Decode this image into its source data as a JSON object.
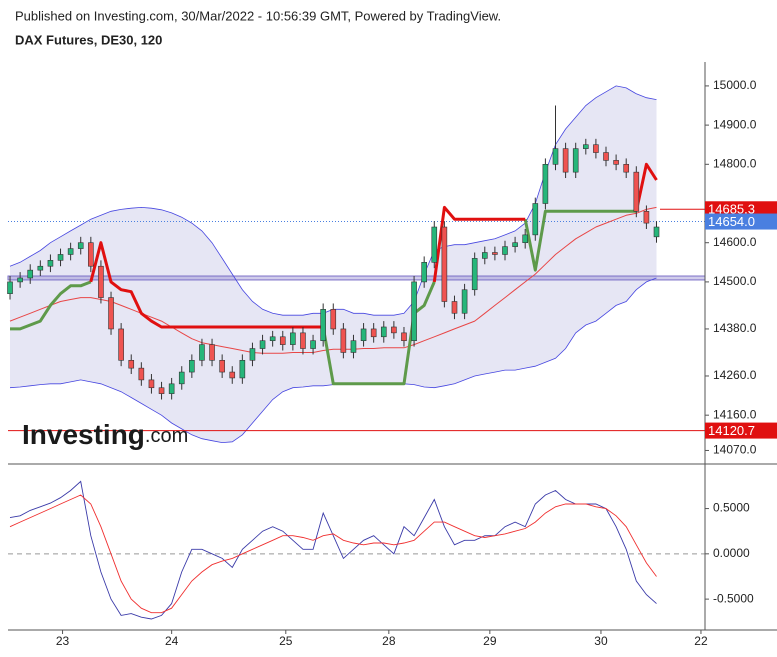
{
  "header": "Published on Investing.com, 30/Mar/2022 - 10:56:39 GMT, Powered by TradingView.",
  "watermark": [
    "Investing",
    ".com"
  ],
  "chart_data": [
    {
      "type": "candlestick",
      "title": "DAX Futures, DE30, 120",
      "open": [
        14470,
        14500,
        14510,
        14530,
        14540,
        14555,
        14570,
        14585,
        14600,
        14540,
        14460,
        14380,
        14300,
        14280,
        14250,
        14230,
        14215,
        14240,
        14270,
        14300,
        14340,
        14300,
        14270,
        14255,
        14300,
        14330,
        14350,
        14360,
        14340,
        14370,
        14330,
        14350,
        14430,
        14380,
        14320,
        14350,
        14380,
        14360,
        14385,
        14370,
        14350,
        14500,
        14550,
        14640,
        14450,
        14420,
        14480,
        14560,
        14575,
        14570,
        14590,
        14600,
        14620,
        14700,
        14800,
        14840,
        14780,
        14840,
        14850,
        14830,
        14810,
        14800,
        14780,
        14680,
        14615
      ],
      "close": [
        14500,
        14510,
        14530,
        14540,
        14555,
        14570,
        14585,
        14600,
        14540,
        14460,
        14380,
        14300,
        14280,
        14250,
        14230,
        14215,
        14240,
        14270,
        14300,
        14340,
        14300,
        14270,
        14255,
        14300,
        14330,
        14350,
        14360,
        14340,
        14370,
        14330,
        14350,
        14430,
        14380,
        14320,
        14350,
        14380,
        14360,
        14385,
        14370,
        14350,
        14500,
        14550,
        14640,
        14450,
        14420,
        14480,
        14560,
        14575,
        14570,
        14590,
        14600,
        14620,
        14700,
        14800,
        14840,
        14780,
        14840,
        14850,
        14830,
        14810,
        14800,
        14780,
        14680,
        14650,
        14640
      ],
      "high": [
        14515,
        14525,
        14545,
        14555,
        14570,
        14585,
        14600,
        14615,
        14615,
        14555,
        14475,
        14395,
        14315,
        14295,
        14265,
        14245,
        14255,
        14285,
        14315,
        14355,
        14355,
        14315,
        14285,
        14315,
        14345,
        14365,
        14375,
        14375,
        14385,
        14385,
        14365,
        14445,
        14445,
        14395,
        14365,
        14395,
        14395,
        14400,
        14400,
        14385,
        14515,
        14565,
        14655,
        14655,
        14465,
        14495,
        14575,
        14590,
        14590,
        14605,
        14615,
        14635,
        14715,
        14815,
        14950,
        14855,
        14855,
        14865,
        14865,
        14845,
        14825,
        14815,
        14795,
        14695,
        14655
      ],
      "low": [
        14455,
        14485,
        14495,
        14515,
        14525,
        14540,
        14555,
        14570,
        14525,
        14445,
        14365,
        14285,
        14265,
        14235,
        14215,
        14200,
        14200,
        14225,
        14255,
        14285,
        14285,
        14255,
        14240,
        14240,
        14285,
        14315,
        14335,
        14325,
        14325,
        14315,
        14315,
        14335,
        14365,
        14305,
        14305,
        14335,
        14345,
        14345,
        14355,
        14335,
        14335,
        14485,
        14535,
        14435,
        14405,
        14405,
        14465,
        14545,
        14555,
        14555,
        14575,
        14585,
        14605,
        14685,
        14785,
        14765,
        14765,
        14825,
        14815,
        14795,
        14785,
        14765,
        14665,
        14635,
        14600
      ],
      "up_color": "#26b67a",
      "down_color": "#ef5350",
      "band_upper": [
        14540,
        14550,
        14565,
        14580,
        14600,
        14615,
        14630,
        14645,
        14660,
        14670,
        14680,
        14685,
        14688,
        14690,
        14688,
        14684,
        14676,
        14665,
        14650,
        14630,
        14600,
        14560,
        14520,
        14480,
        14450,
        14430,
        14420,
        14415,
        14415,
        14415,
        14420,
        14420,
        14430,
        14430,
        14420,
        14420,
        14415,
        14415,
        14415,
        14420,
        14450,
        14520,
        14580,
        14590,
        14595,
        14595,
        14600,
        14605,
        14610,
        14620,
        14630,
        14650,
        14700,
        14780,
        14850,
        14890,
        14920,
        14950,
        14970,
        14985,
        15000,
        14995,
        14980,
        14970,
        14965
      ],
      "band_lower": [
        14230,
        14232,
        14235,
        14238,
        14240,
        14240,
        14245,
        14250,
        14245,
        14240,
        14230,
        14220,
        14205,
        14190,
        14175,
        14160,
        14140,
        14125,
        14110,
        14100,
        14095,
        14090,
        14092,
        14110,
        14140,
        14170,
        14200,
        14220,
        14230,
        14232,
        14235,
        14235,
        14238,
        14240,
        14240,
        14240,
        14240,
        14240,
        14240,
        14240,
        14238,
        14232,
        14230,
        14235,
        14240,
        14250,
        14260,
        14265,
        14270,
        14275,
        14275,
        14280,
        14285,
        14295,
        14305,
        14330,
        14370,
        14390,
        14400,
        14420,
        14440,
        14450,
        14480,
        14500,
        14510
      ],
      "band_color": "#4646e0",
      "band_fill": "#e6e6f4",
      "overlays": [
        {
          "color": "#e84646",
          "width": 1,
          "values": [
            14400,
            14410,
            14420,
            14430,
            14440,
            14450,
            14455,
            14460,
            14460,
            14455,
            14450,
            14440,
            14430,
            14420,
            14410,
            14400,
            14385,
            14370,
            14355,
            14345,
            14340,
            14335,
            14330,
            14325,
            14320,
            14318,
            14318,
            14318,
            14320,
            14320,
            14320,
            14325,
            14328,
            14328,
            14328,
            14330,
            14330,
            14332,
            14332,
            14332,
            14340,
            14350,
            14360,
            14370,
            14380,
            14390,
            14400,
            14420,
            14440,
            14460,
            14480,
            14500,
            14520,
            14545,
            14570,
            14590,
            14610,
            14625,
            14640,
            14650,
            14660,
            14670,
            14675,
            14685,
            14690
          ]
        },
        {
          "color": "#5e9a4a",
          "width": 3,
          "values": [
            14380,
            14380,
            14390,
            14400,
            14440,
            14470,
            14490,
            14490,
            14500,
            null,
            null,
            null,
            null,
            null,
            null,
            null,
            null,
            null,
            null,
            null,
            null,
            null,
            null,
            null,
            null,
            null,
            null,
            null,
            null,
            null,
            null,
            14385,
            14240,
            14240,
            14240,
            14240,
            14240,
            14240,
            14240,
            14240,
            14420,
            14440,
            14500,
            null,
            null,
            null,
            null,
            null,
            null,
            null,
            null,
            14660,
            14530,
            14680,
            14680,
            14680,
            14680,
            14680,
            14680,
            14680,
            14680,
            14680,
            14680,
            null,
            null
          ]
        },
        {
          "color": "#e01010",
          "width": 3,
          "values": [
            null,
            null,
            null,
            null,
            null,
            null,
            null,
            null,
            14500,
            14600,
            14500,
            14480,
            14475,
            14420,
            14400,
            14385,
            14385,
            14385,
            14385,
            14385,
            14385,
            14385,
            14385,
            14385,
            14385,
            14385,
            14385,
            14385,
            14385,
            14385,
            14385,
            14385,
            null,
            null,
            null,
            null,
            null,
            null,
            null,
            null,
            null,
            null,
            14500,
            14690,
            14660,
            14660,
            14660,
            14660,
            14660,
            14660,
            14660,
            14660,
            null,
            null,
            null,
            null,
            null,
            null,
            null,
            null,
            null,
            null,
            14680,
            14800,
            14760
          ]
        }
      ],
      "zone": [
        14505,
        14515
      ],
      "zone_color": "#7b6fc6",
      "price_lines": [
        {
          "value": 14685.3,
          "label": "14685.3",
          "color": "#e01010",
          "style": "short"
        },
        {
          "value": 14654.0,
          "label": "14654.0",
          "color": "#4a7fe0",
          "style": "dotted"
        },
        {
          "value": 14120.7,
          "label": "14120.7",
          "color": "#e01010",
          "style": "solid"
        }
      ],
      "ylim": [
        14038,
        15061
      ],
      "yticks": [
        {
          "value": 15000,
          "label": "15000.0"
        },
        {
          "value": 14900,
          "label": "14900.0"
        },
        {
          "value": 14800,
          "label": "14800.0"
        },
        {
          "value": 14600,
          "label": "14600.0"
        },
        {
          "value": 14500,
          "label": "14500.0"
        },
        {
          "value": 14380,
          "label": "14380.0"
        },
        {
          "value": 14260,
          "label": "14260.0"
        },
        {
          "value": 14160,
          "label": "14160.0"
        },
        {
          "value": 14070,
          "label": "14070.0"
        }
      ],
      "xlim": [
        -0.2,
        68.8
      ],
      "xticks": [
        {
          "value": 5.2,
          "label": "23"
        },
        {
          "value": 16,
          "label": "24"
        },
        {
          "value": 27.3,
          "label": "25"
        },
        {
          "value": 37.5,
          "label": "28"
        },
        {
          "value": 47.5,
          "label": "29"
        },
        {
          "value": 58.5,
          "label": "30"
        },
        {
          "value": 68.4,
          "label": "22"
        }
      ]
    },
    {
      "type": "line",
      "series": [
        {
          "color": "#3a3aa8",
          "values": [
            0.4,
            0.42,
            0.48,
            0.52,
            0.56,
            0.62,
            0.7,
            0.8,
            0.2,
            -0.2,
            -0.5,
            -0.68,
            -0.66,
            -0.7,
            -0.72,
            -0.68,
            -0.55,
            -0.2,
            0.05,
            0.05,
            0.0,
            -0.05,
            -0.15,
            0.05,
            0.15,
            0.25,
            0.3,
            0.25,
            0.15,
            0.05,
            0.05,
            0.45,
            0.2,
            -0.05,
            0.05,
            0.15,
            0.2,
            0.1,
            0.0,
            0.3,
            0.2,
            0.4,
            0.6,
            0.3,
            0.1,
            0.15,
            0.15,
            0.2,
            0.2,
            0.3,
            0.35,
            0.3,
            0.55,
            0.65,
            0.7,
            0.6,
            0.55,
            0.55,
            0.55,
            0.5,
            0.3,
            0.05,
            -0.3,
            -0.45,
            -0.55
          ]
        },
        {
          "color": "#f03030",
          "values": [
            0.3,
            0.35,
            0.4,
            0.45,
            0.5,
            0.55,
            0.6,
            0.65,
            0.55,
            0.3,
            0.0,
            -0.3,
            -0.5,
            -0.6,
            -0.65,
            -0.65,
            -0.6,
            -0.45,
            -0.3,
            -0.2,
            -0.12,
            -0.08,
            -0.05,
            0.0,
            0.05,
            0.1,
            0.15,
            0.2,
            0.2,
            0.18,
            0.15,
            0.2,
            0.22,
            0.15,
            0.12,
            0.1,
            0.12,
            0.12,
            0.1,
            0.12,
            0.15,
            0.25,
            0.35,
            0.35,
            0.3,
            0.25,
            0.2,
            0.18,
            0.2,
            0.22,
            0.25,
            0.28,
            0.35,
            0.45,
            0.52,
            0.55,
            0.55,
            0.55,
            0.52,
            0.5,
            0.42,
            0.3,
            0.1,
            -0.1,
            -0.25
          ]
        }
      ],
      "ylim": [
        -0.83,
        0.97
      ],
      "yticks": [
        {
          "value": 0.5,
          "label": "0.5000"
        },
        {
          "value": 0,
          "label": "0.0000"
        },
        {
          "value": -0.5,
          "label": "-0.5000"
        }
      ],
      "zero_line": true
    }
  ]
}
